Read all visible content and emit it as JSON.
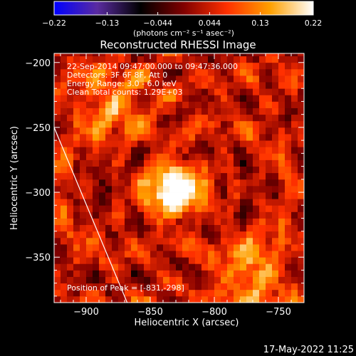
{
  "chart_data": {
    "type": "heatmap",
    "title": "Reconstructed RHESSI Image",
    "xlabel": "Heliocentric X (arcsec)",
    "ylabel": "Heliocentric Y (arcsec)",
    "xlim": [
      -925,
      -730
    ],
    "ylim": [
      -385,
      -193
    ],
    "x_ticks": [
      -900,
      -850,
      -800,
      -750
    ],
    "x_tick_labels": [
      "−900",
      "−850",
      "−800",
      "−750"
    ],
    "y_ticks": [
      -200,
      -250,
      -300,
      -350
    ],
    "y_tick_labels": [
      "−200",
      "−250",
      "−300",
      "−350"
    ],
    "colorbar": {
      "min": -0.22,
      "max": 0.22,
      "ticks": [
        -0.22,
        -0.13,
        -0.044,
        0.044,
        0.13,
        0.22
      ],
      "tick_labels": [
        "−0.22",
        "−0.13",
        "−0.044",
        "0.044",
        "0.13",
        "0.22"
      ],
      "units": "(photons cm⁻² s⁻¹ asec⁻²)",
      "colormap": [
        "#0000ff",
        "#5a2ba0",
        "#000000",
        "#800000",
        "#ff3000",
        "#ffa000",
        "#ffffff"
      ]
    },
    "annotations": [
      "22-Sep-2014 09:47:00.000 to 09:47:36.000",
      "Detectors: 3F 6F 8F, Att 0",
      "Energy Range: 3.0 - 6.0 keV",
      "Clean    Total counts: 1.29E+03"
    ],
    "peak_label": "Position of Peak = [-831,-298]",
    "peak": {
      "x": -831,
      "y": -298
    },
    "main_source": {
      "x": -831,
      "y": -298,
      "peak": 0.22
    },
    "secondary_sources": [
      {
        "x": -770,
        "y": -365,
        "peak": 0.12
      },
      {
        "x": -880,
        "y": -230,
        "peak": 0.1
      }
    ],
    "limb_line": {
      "x1": -925,
      "y1": -250,
      "x2": -868,
      "y2": -385
    },
    "footer_timestamp": "17-May-2022 11:25"
  }
}
